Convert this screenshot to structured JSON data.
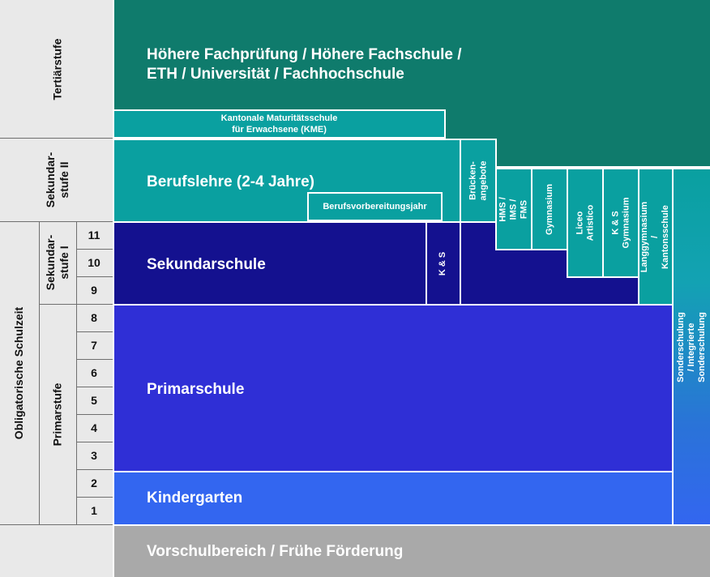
{
  "levels": {
    "tertiaer": "Tertiärstufe",
    "sek2": "Sekundar-\nstufe II",
    "obligatorisch": "Obligatorische Schulzeit",
    "sek1": "Sekundar-\nstufe I",
    "primar": "Primarstufe"
  },
  "grades": [
    "11",
    "10",
    "9",
    "8",
    "7",
    "6",
    "5",
    "4",
    "3",
    "2",
    "1"
  ],
  "blocks": {
    "hoehere_line1": "Höhere Fachprüfung / Höhere Fachschule /",
    "hoehere_line2": "ETH / Universität / Fachhochschule",
    "kme_line1": "Kantonale Maturitätsschule",
    "kme_line2": "für Erwachsene (KME)",
    "berufslehre": "Berufslehre (2-4 Jahre)",
    "berufsvorbereitung": "Berufsvorbereitungsjahr",
    "brueckenangebote": "Brücken-\nangebote",
    "hms": "HMS / IMS /\nFMS",
    "gymnasium": "Gymnasium",
    "liceo": "Liceo Artistico",
    "ks_gymnasium": "K & S Gymnasium",
    "langgymnasium": "Langgymnasium /\nKantonsschule",
    "sekundarschule": "Sekundarschule",
    "ks": "K & S",
    "sonderschulung": "Sonderschulung / Integrierte Sonderschulung",
    "primarschule": "Primarschule",
    "kindergarten": "Kindergarten",
    "vorschule": "Vorschulbereich / Frühe Förderung"
  },
  "colors": {
    "tertiary": "#0f7b6c",
    "secondary2": "#0aa0a0",
    "secondary1": "#14118f",
    "primary": "#2f2fd6",
    "kindergarten": "#3366f0",
    "preschool": "#a9a9a9",
    "label_bg": "#e9e9e9"
  }
}
